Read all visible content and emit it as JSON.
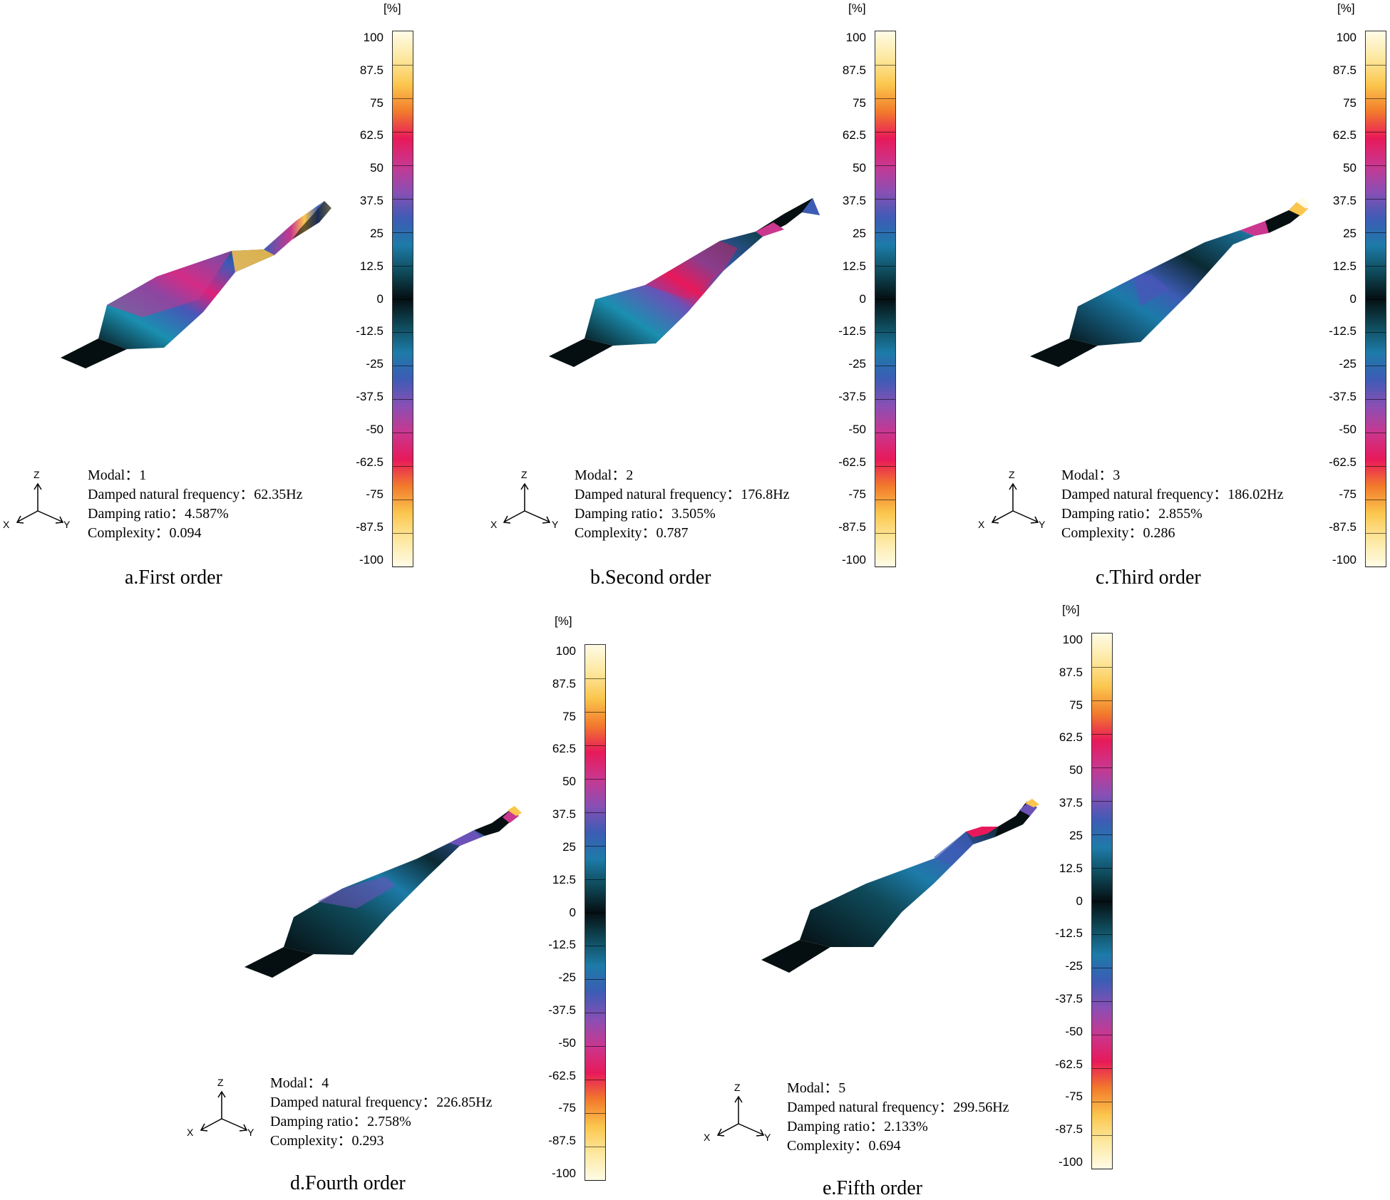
{
  "unit_label": "[%]",
  "scale_ticks": [
    "100",
    "87.5",
    "75",
    "62.5",
    "50",
    "37.5",
    "25",
    "12.5",
    "0",
    "-12.5",
    "-25",
    "-37.5",
    "-50",
    "-62.5",
    "-75",
    "-87.5",
    "-100"
  ],
  "scale_colors": [
    "#fffbe6",
    "#fde8a0",
    "#fbc64d",
    "#f27b2c",
    "#e8195a",
    "#c9378f",
    "#8a4fb4",
    "#3d5cb5",
    "#1d7ba8",
    "#0f4a5a",
    "#050f12",
    "#0f4a5a",
    "#1d7ba8",
    "#3d5cb5",
    "#8a4fb4",
    "#c9378f",
    "#e8195a",
    "#f27b2c",
    "#fbc64d",
    "#fde8a0",
    "#fffbe6"
  ],
  "axes_labels": {
    "z": "Z",
    "x": "X",
    "y": "Y"
  },
  "info_labels": {
    "modal": "Modal：",
    "frequency": "Damped natural frequency：",
    "damping": "Damping ratio：",
    "complexity": "Complexity："
  },
  "panels": [
    {
      "modal": "1",
      "frequency": "62.35Hz",
      "damping": "4.587%",
      "complexity": "0.094",
      "caption": "a.First order",
      "shape_icon": "first-order-mode-shape"
    },
    {
      "modal": "2",
      "frequency": "176.8Hz",
      "damping": "3.505%",
      "complexity": "0.787",
      "caption": "b.Second order",
      "shape_icon": "second-order-mode-shape"
    },
    {
      "modal": "3",
      "frequency": "186.02Hz",
      "damping": "2.855%",
      "complexity": "0.286",
      "caption": "c.Third order",
      "shape_icon": "third-order-mode-shape"
    },
    {
      "modal": "4",
      "frequency": "226.85Hz",
      "damping": "2.758%",
      "complexity": "0.293",
      "caption": "d.Fourth order",
      "shape_icon": "fourth-order-mode-shape"
    },
    {
      "modal": "5",
      "frequency": "299.56Hz",
      "damping": "2.133%",
      "complexity": "0.694",
      "caption": "e.Fifth order",
      "shape_icon": "fifth-order-mode-shape"
    }
  ]
}
